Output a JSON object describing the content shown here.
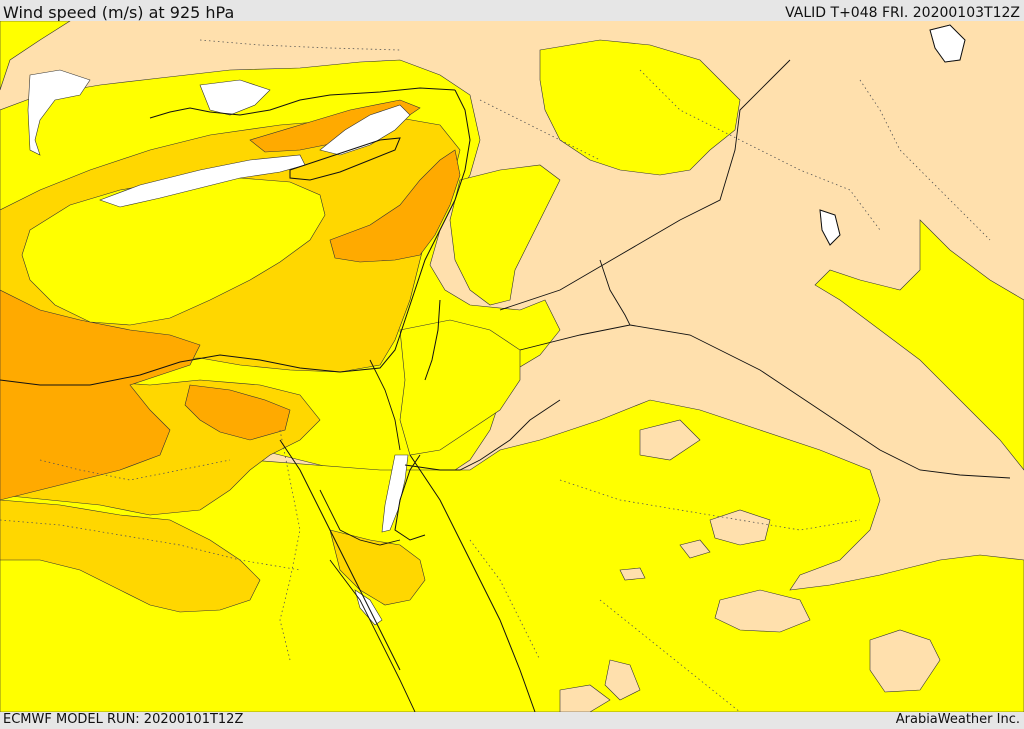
{
  "header": {
    "title": "Wind speed (m/s) at 925 hPa",
    "valid": "VALID T+048 FRI. 20200103T12Z"
  },
  "footer": {
    "model_run": "ECMWF MODEL RUN: 20200101T12Z",
    "credit": "ArabiaWeather Inc."
  },
  "colors": {
    "white": "#ffffff",
    "tan": "#ffe0ad",
    "yellow": "#ffff00",
    "gold": "#ffd700",
    "orange": "#ffaa00",
    "outline": "#333333"
  },
  "map": {
    "variable": "Wind speed",
    "level": "925 hPa",
    "units": "m/s"
  }
}
